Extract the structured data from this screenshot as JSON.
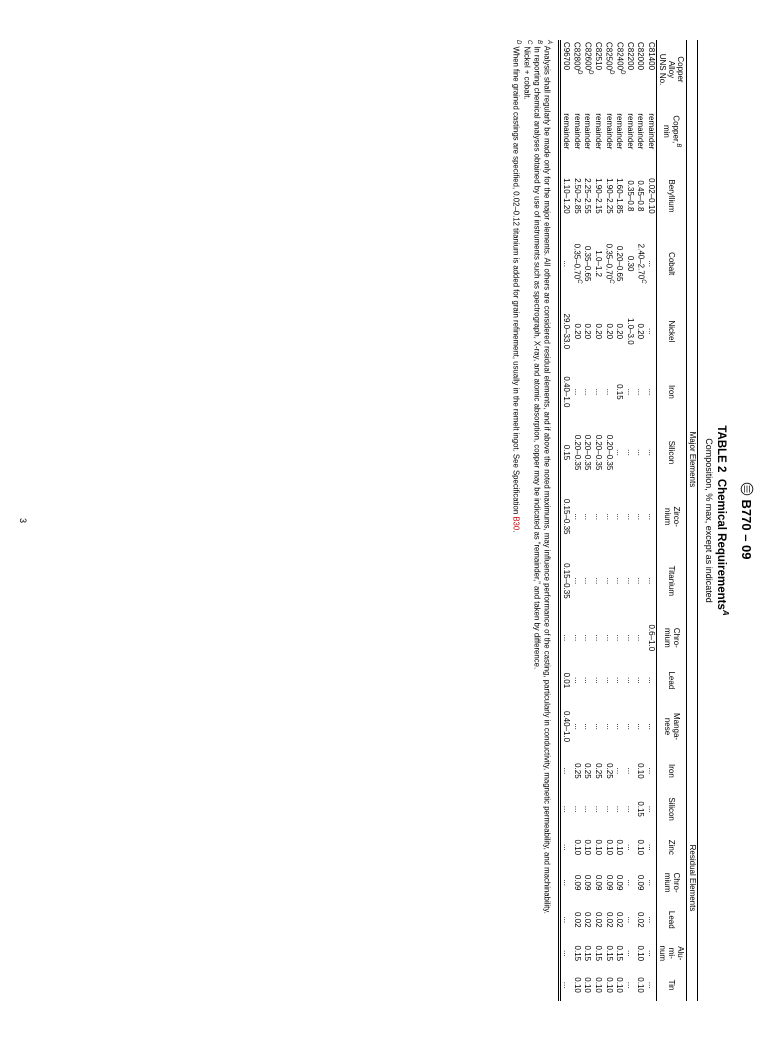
{
  "spec_header": "B770 – 09",
  "page_number": "3",
  "title_prefix": "TABLE 2",
  "title_rest": "Chemical Requirements",
  "title_sup": "A",
  "subtitle": "Composition, % max, except as indicated",
  "group_labels": {
    "major": "Major Elements",
    "residual": "Residual Elements"
  },
  "columns": {
    "c0": "Copper\nAlloy\nUNS No.",
    "c1": "Copper,",
    "c1sup": "B",
    "c1b": "min",
    "c2": "Beryllium",
    "c3": "Cobalt",
    "c4": "Nickel",
    "c5": "Iron",
    "c6": "Silicon",
    "c7": "Zirco-\nnium",
    "c8": "Titanium",
    "c9": "Chro-\nmium",
    "c10": "Lead",
    "c11": "Manga-\nnese",
    "c12": "Iron",
    "c13": "Silicon",
    "c14": "Zinc",
    "c15": "Chro-\nmium",
    "c16": "Lead",
    "c17": "Alu-\nmi-\nnum",
    "c18": "Tin"
  },
  "rows": [
    {
      "id": "C81400",
      "cu": "remainder",
      "be": "0.02–0.10",
      "co": "...",
      "ni": "...",
      "fe": "...",
      "si": "...",
      "zr": "...",
      "ti": "...",
      "cr": "0.6–1.0",
      "pb": "...",
      "mn": "...",
      "rfe": "...",
      "rsi": "...",
      "zn": "...",
      "rcr": "...",
      "rpb": "...",
      "al": "...",
      "sn": "..."
    },
    {
      "id": "C82000",
      "cu": "remainder",
      "be": "0.45–0.8",
      "co": "2.40–2.70",
      "cosup": "C",
      "ni": "0.20",
      "fe": "...",
      "si": "...",
      "zr": "...",
      "ti": "...",
      "cr": "...",
      "pb": "...",
      "mn": "...",
      "rfe": "0.10",
      "rsi": "0.15",
      "zn": "0.10",
      "rcr": "0.09",
      "rpb": "0.02",
      "al": "0.10",
      "sn": "0.10"
    },
    {
      "id": "C82200",
      "cu": "remainder",
      "be": "0.35–0.8",
      "co": "0.30",
      "ni": "1.0–3.0",
      "fe": "...",
      "si": "...",
      "zr": "...",
      "ti": "...",
      "cr": "...",
      "pb": "...",
      "mn": "...",
      "rfe": "...",
      "rsi": "...",
      "zn": "...",
      "rcr": "...",
      "rpb": "...",
      "al": "...",
      "sn": "..."
    },
    {
      "id": "C82400",
      "idsup": "D",
      "cu": "remainder",
      "be": "1.60–1.85",
      "co": "0.20–0.65",
      "ni": "0.20",
      "fe": "0.15",
      "si": "...",
      "zr": "...",
      "ti": "...",
      "cr": "...",
      "pb": "...",
      "mn": "...",
      "rfe": "...",
      "rsi": "...",
      "zn": "0.10",
      "rcr": "0.09",
      "rpb": "0.02",
      "al": "0.15",
      "sn": "0.10"
    },
    {
      "id": "C82500",
      "idsup": "D",
      "cu": "remainder",
      "be": "1.90–2.25",
      "co": "0.35–0.70",
      "cosup": "C",
      "ni": "0.20",
      "fe": "...",
      "si": "0.20–0.35",
      "zr": "...",
      "ti": "...",
      "cr": "...",
      "pb": "...",
      "mn": "...",
      "rfe": "0.25",
      "rsi": "...",
      "zn": "0.10",
      "rcr": "0.09",
      "rpb": "0.02",
      "al": "0.15",
      "sn": "0.10"
    },
    {
      "id": "C82510",
      "cu": "remainder",
      "be": "1.90–2.15",
      "co": "1.0–1.2",
      "ni": "0.20",
      "fe": "...",
      "si": "0.20–0.35",
      "zr": "...",
      "ti": "...",
      "cr": "...",
      "pb": "...",
      "mn": "...",
      "rfe": "0.25",
      "rsi": "...",
      "zn": "0.10",
      "rcr": "0.09",
      "rpb": "0.02",
      "al": "0.15",
      "sn": "0.10"
    },
    {
      "id": "C82600",
      "idsup": "D",
      "cu": "remainder",
      "be": "2.25–2.55",
      "co": "0.35–0.65",
      "ni": "0.20",
      "fe": "...",
      "si": "0.20–0.35",
      "zr": "...",
      "ti": "...",
      "cr": "...",
      "pb": "...",
      "mn": "...",
      "rfe": "0.25",
      "rsi": "...",
      "zn": "0.10",
      "rcr": "0.09",
      "rpb": "0.02",
      "al": "0.15",
      "sn": "0.10"
    },
    {
      "id": "C82800",
      "idsup": "D",
      "cu": "remainder",
      "be": "2.50–2.85",
      "co": "0.35–0.70",
      "cosup": "C",
      "ni": "0.20",
      "fe": "...",
      "si": "0.20–0.35",
      "zr": "...",
      "ti": "...",
      "cr": "...",
      "pb": "...",
      "mn": "...",
      "rfe": "0.25",
      "rsi": "...",
      "zn": "0.10",
      "rcr": "0.09",
      "rpb": "0.02",
      "al": "0.15",
      "sn": "0.10"
    },
    {
      "id": "C96700",
      "cu": "remainder",
      "be": "1.10–1.20",
      "co": "...",
      "ni": "29.0–33.0",
      "fe": "0.40–1.0",
      "si": "0.15",
      "zr": "0.15–0.35",
      "ti": "0.15–0.35",
      "cr": "...",
      "pb": "0.01",
      "mn": "0.40–1.0",
      "rfe": "...",
      "rsi": "...",
      "zn": "...",
      "rcr": "...",
      "rpb": "...",
      "al": "...",
      "sn": "..."
    }
  ],
  "footnotes": {
    "A": "Analysis shall regularly be made only for the major elements. All others are considered residual elements, and if above the noted maximums, may influence performance of the casting, particularly in conductivity, magnetic permeability, and machinability.",
    "B": "In reporting chemical analyses obtained by use of instruments such as spectrograph, X-ray, and atomic absorption, copper may be indicated as “remainder,” and taken by difference.",
    "C": "Nickel + cobalt.",
    "D_pre": "When fine grained castings are specified, 0.02–0.12 titanium is added for grain refinement, usually in the remelt ingot. See Specification ",
    "D_ref": "B30",
    "D_post": "."
  }
}
